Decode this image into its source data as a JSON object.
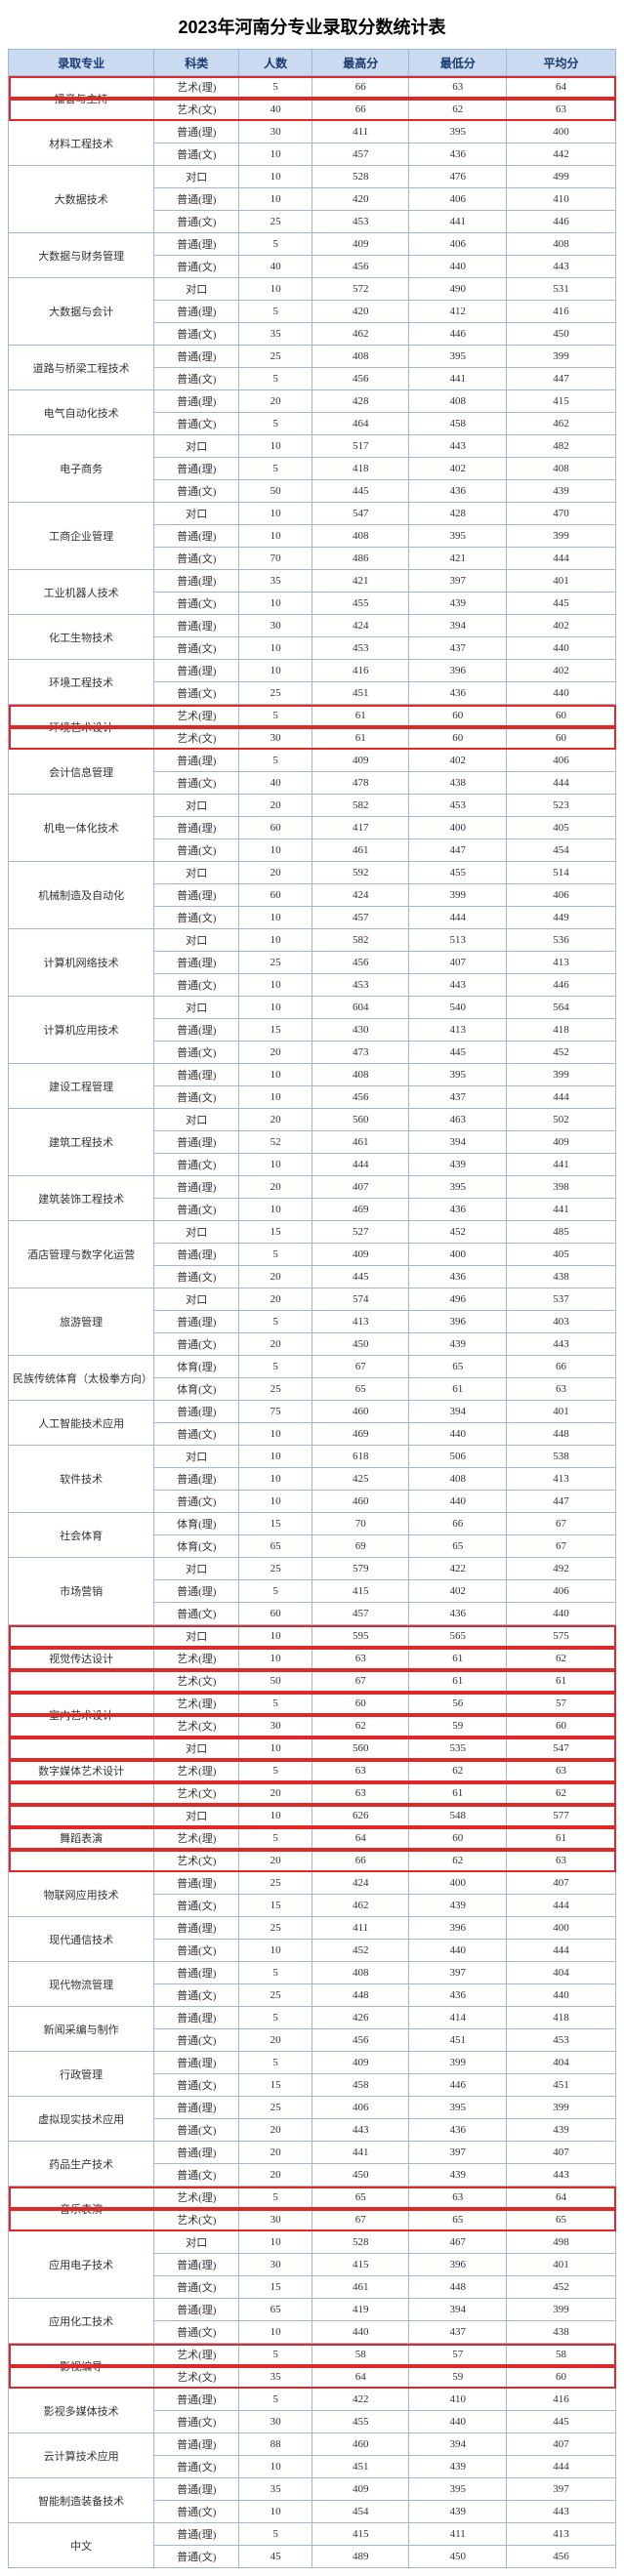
{
  "title": "2023年河南分专业录取分数统计表",
  "headers": [
    "录取专业",
    "科类",
    "人数",
    "最高分",
    "最低分",
    "平均分"
  ],
  "highlight_color": "#e02828",
  "header_bg": "#c9daf1",
  "header_fg": "#1a3a6e",
  "border_color": "#a0b8d8",
  "majors": [
    {
      "name": "播音与主持",
      "hl": true,
      "rows": [
        [
          "艺术(理)",
          5,
          66,
          63,
          64
        ],
        [
          "艺术(文)",
          40,
          66,
          62,
          63
        ]
      ]
    },
    {
      "name": "材料工程技术",
      "rows": [
        [
          "普通(理)",
          30,
          411,
          395,
          400
        ],
        [
          "普通(文)",
          10,
          457,
          436,
          442
        ]
      ]
    },
    {
      "name": "大数据技术",
      "rows": [
        [
          "对口",
          10,
          528,
          476,
          499
        ],
        [
          "普通(理)",
          10,
          420,
          406,
          410
        ],
        [
          "普通(文)",
          25,
          453,
          441,
          446
        ]
      ]
    },
    {
      "name": "大数据与财务管理",
      "rows": [
        [
          "普通(理)",
          5,
          409,
          406,
          408
        ],
        [
          "普通(文)",
          40,
          456,
          440,
          443
        ]
      ]
    },
    {
      "name": "大数据与会计",
      "rows": [
        [
          "对口",
          10,
          572,
          490,
          531
        ],
        [
          "普通(理)",
          5,
          420,
          412,
          416
        ],
        [
          "普通(文)",
          35,
          462,
          446,
          450
        ]
      ]
    },
    {
      "name": "道路与桥梁工程技术",
      "rows": [
        [
          "普通(理)",
          25,
          408,
          395,
          399
        ],
        [
          "普通(文)",
          5,
          456,
          441,
          447
        ]
      ]
    },
    {
      "name": "电气自动化技术",
      "rows": [
        [
          "普通(理)",
          20,
          428,
          408,
          415
        ],
        [
          "普通(文)",
          5,
          464,
          458,
          462
        ]
      ]
    },
    {
      "name": "电子商务",
      "rows": [
        [
          "对口",
          10,
          517,
          443,
          482
        ],
        [
          "普通(理)",
          5,
          418,
          402,
          408
        ],
        [
          "普通(文)",
          50,
          445,
          436,
          439
        ]
      ]
    },
    {
      "name": "工商企业管理",
      "rows": [
        [
          "对口",
          10,
          547,
          428,
          470
        ],
        [
          "普通(理)",
          10,
          408,
          395,
          399
        ],
        [
          "普通(文)",
          70,
          486,
          421,
          444
        ]
      ]
    },
    {
      "name": "工业机器人技术",
      "rows": [
        [
          "普通(理)",
          35,
          421,
          397,
          401
        ],
        [
          "普通(文)",
          10,
          455,
          439,
          445
        ]
      ]
    },
    {
      "name": "化工生物技术",
      "rows": [
        [
          "普通(理)",
          30,
          424,
          394,
          402
        ],
        [
          "普通(文)",
          10,
          453,
          437,
          440
        ]
      ]
    },
    {
      "name": "环境工程技术",
      "rows": [
        [
          "普通(理)",
          10,
          416,
          396,
          402
        ],
        [
          "普通(文)",
          25,
          451,
          436,
          440
        ]
      ]
    },
    {
      "name": "环境艺术设计",
      "hl": true,
      "rows": [
        [
          "艺术(理)",
          5,
          61,
          60,
          60
        ],
        [
          "艺术(文)",
          30,
          61,
          60,
          60
        ]
      ]
    },
    {
      "name": "会计信息管理",
      "rows": [
        [
          "普通(理)",
          5,
          409,
          402,
          406
        ],
        [
          "普通(文)",
          40,
          478,
          438,
          444
        ]
      ]
    },
    {
      "name": "机电一体化技术",
      "rows": [
        [
          "对口",
          20,
          582,
          453,
          523
        ],
        [
          "普通(理)",
          60,
          417,
          400,
          405
        ],
        [
          "普通(文)",
          10,
          461,
          447,
          454
        ]
      ]
    },
    {
      "name": "机械制造及自动化",
      "rows": [
        [
          "对口",
          20,
          592,
          455,
          514
        ],
        [
          "普通(理)",
          60,
          424,
          399,
          406
        ],
        [
          "普通(文)",
          10,
          457,
          444,
          449
        ]
      ]
    },
    {
      "name": "计算机网络技术",
      "rows": [
        [
          "对口",
          10,
          582,
          513,
          536
        ],
        [
          "普通(理)",
          25,
          456,
          407,
          413
        ],
        [
          "普通(文)",
          10,
          453,
          443,
          446
        ]
      ]
    },
    {
      "name": "计算机应用技术",
      "rows": [
        [
          "对口",
          10,
          604,
          540,
          564
        ],
        [
          "普通(理)",
          15,
          430,
          413,
          418
        ],
        [
          "普通(文)",
          20,
          473,
          445,
          452
        ]
      ]
    },
    {
      "name": "建设工程管理",
      "rows": [
        [
          "普通(理)",
          10,
          408,
          395,
          399
        ],
        [
          "普通(文)",
          10,
          456,
          437,
          444
        ]
      ]
    },
    {
      "name": "建筑工程技术",
      "rows": [
        [
          "对口",
          20,
          560,
          463,
          502
        ],
        [
          "普通(理)",
          52,
          461,
          394,
          409
        ],
        [
          "普通(文)",
          10,
          444,
          439,
          441
        ]
      ]
    },
    {
      "name": "建筑装饰工程技术",
      "rows": [
        [
          "普通(理)",
          20,
          407,
          395,
          398
        ],
        [
          "普通(文)",
          10,
          469,
          436,
          441
        ]
      ]
    },
    {
      "name": "酒店管理与数字化运营",
      "rows": [
        [
          "对口",
          15,
          527,
          452,
          485
        ],
        [
          "普通(理)",
          5,
          409,
          400,
          405
        ],
        [
          "普通(文)",
          20,
          445,
          436,
          438
        ]
      ]
    },
    {
      "name": "旅游管理",
      "rows": [
        [
          "对口",
          20,
          574,
          496,
          537
        ],
        [
          "普通(理)",
          5,
          413,
          396,
          403
        ],
        [
          "普通(文)",
          20,
          450,
          439,
          443
        ]
      ]
    },
    {
      "name": "民族传统体育（太极拳方向）",
      "rows": [
        [
          "体育(理)",
          5,
          67,
          65,
          66
        ],
        [
          "体育(文)",
          25,
          65,
          61,
          63
        ]
      ]
    },
    {
      "name": "人工智能技术应用",
      "rows": [
        [
          "普通(理)",
          75,
          460,
          394,
          401
        ],
        [
          "普通(文)",
          10,
          469,
          440,
          448
        ]
      ]
    },
    {
      "name": "软件技术",
      "rows": [
        [
          "对口",
          10,
          618,
          506,
          538
        ],
        [
          "普通(理)",
          10,
          425,
          408,
          413
        ],
        [
          "普通(文)",
          10,
          460,
          440,
          447
        ]
      ]
    },
    {
      "name": "社会体育",
      "rows": [
        [
          "体育(理)",
          15,
          70,
          66,
          67
        ],
        [
          "体育(文)",
          65,
          69,
          65,
          67
        ]
      ]
    },
    {
      "name": "市场营销",
      "rows": [
        [
          "对口",
          25,
          579,
          422,
          492
        ],
        [
          "普通(理)",
          5,
          415,
          402,
          406
        ],
        [
          "普通(文)",
          60,
          457,
          436,
          440
        ]
      ]
    },
    {
      "name": "视觉传达设计",
      "hl": true,
      "rows": [
        [
          "对口",
          10,
          595,
          565,
          575
        ],
        [
          "艺术(理)",
          10,
          63,
          61,
          62
        ],
        [
          "艺术(文)",
          50,
          67,
          61,
          61
        ]
      ]
    },
    {
      "name": "室内艺术设计",
      "hl": true,
      "rows": [
        [
          "艺术(理)",
          5,
          60,
          56,
          57
        ],
        [
          "艺术(文)",
          30,
          62,
          59,
          60
        ]
      ]
    },
    {
      "name": "数字媒体艺术设计",
      "hl": true,
      "rows": [
        [
          "对口",
          10,
          560,
          535,
          547
        ],
        [
          "艺术(理)",
          5,
          63,
          62,
          63
        ],
        [
          "艺术(文)",
          20,
          63,
          61,
          62
        ]
      ]
    },
    {
      "name": "舞蹈表演",
      "hl": true,
      "rows": [
        [
          "对口",
          10,
          626,
          548,
          577
        ],
        [
          "艺术(理)",
          5,
          64,
          60,
          61
        ],
        [
          "艺术(文)",
          20,
          66,
          62,
          63
        ]
      ]
    },
    {
      "name": "物联网应用技术",
      "rows": [
        [
          "普通(理)",
          25,
          424,
          400,
          407
        ],
        [
          "普通(文)",
          15,
          462,
          439,
          444
        ]
      ]
    },
    {
      "name": "现代通信技术",
      "rows": [
        [
          "普通(理)",
          25,
          411,
          396,
          400
        ],
        [
          "普通(文)",
          10,
          452,
          440,
          444
        ]
      ]
    },
    {
      "name": "现代物流管理",
      "rows": [
        [
          "普通(理)",
          5,
          408,
          397,
          404
        ],
        [
          "普通(文)",
          25,
          448,
          436,
          440
        ]
      ]
    },
    {
      "name": "新闻采编与制作",
      "rows": [
        [
          "普通(理)",
          5,
          426,
          414,
          418
        ],
        [
          "普通(文)",
          20,
          456,
          451,
          453
        ]
      ]
    },
    {
      "name": "行政管理",
      "rows": [
        [
          "普通(理)",
          5,
          409,
          399,
          404
        ],
        [
          "普通(文)",
          15,
          458,
          446,
          451
        ]
      ]
    },
    {
      "name": "虚拟现实技术应用",
      "rows": [
        [
          "普通(理)",
          25,
          406,
          395,
          399
        ],
        [
          "普通(文)",
          20,
          443,
          436,
          439
        ]
      ]
    },
    {
      "name": "药品生产技术",
      "rows": [
        [
          "普通(理)",
          20,
          441,
          397,
          407
        ],
        [
          "普通(文)",
          20,
          450,
          439,
          443
        ]
      ]
    },
    {
      "name": "音乐表演",
      "hl": true,
      "rows": [
        [
          "艺术(理)",
          5,
          65,
          63,
          64
        ],
        [
          "艺术(文)",
          30,
          67,
          65,
          65
        ]
      ]
    },
    {
      "name": "应用电子技术",
      "rows": [
        [
          "对口",
          10,
          528,
          467,
          498
        ],
        [
          "普通(理)",
          30,
          415,
          396,
          401
        ],
        [
          "普通(文)",
          15,
          461,
          448,
          452
        ]
      ]
    },
    {
      "name": "应用化工技术",
      "rows": [
        [
          "普通(理)",
          65,
          419,
          394,
          399
        ],
        [
          "普通(文)",
          10,
          440,
          437,
          438
        ]
      ]
    },
    {
      "name": "影视编导",
      "hl": true,
      "rows": [
        [
          "艺术(理)",
          5,
          58,
          57,
          58
        ],
        [
          "艺术(文)",
          35,
          64,
          59,
          60
        ]
      ]
    },
    {
      "name": "影视多媒体技术",
      "rows": [
        [
          "普通(理)",
          5,
          422,
          410,
          416
        ],
        [
          "普通(文)",
          30,
          455,
          440,
          445
        ]
      ]
    },
    {
      "name": "云计算技术应用",
      "rows": [
        [
          "普通(理)",
          88,
          460,
          394,
          407
        ],
        [
          "普通(文)",
          10,
          451,
          439,
          444
        ]
      ]
    },
    {
      "name": "智能制造装备技术",
      "rows": [
        [
          "普通(理)",
          35,
          409,
          395,
          397
        ],
        [
          "普通(文)",
          10,
          454,
          439,
          443
        ]
      ]
    },
    {
      "name": "中文",
      "rows": [
        [
          "普通(理)",
          5,
          415,
          411,
          413
        ],
        [
          "普通(文)",
          45,
          489,
          450,
          456
        ]
      ]
    }
  ]
}
